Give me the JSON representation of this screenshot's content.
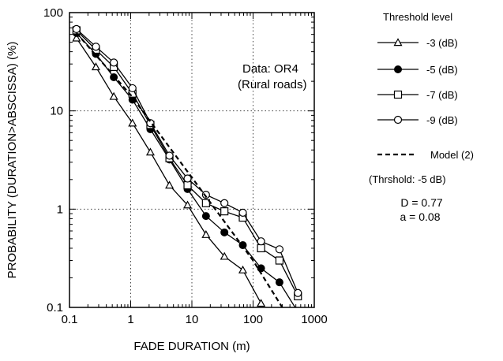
{
  "chart_data": {
    "type": "line",
    "xlabel": "FADE DURATION (m)",
    "ylabel": "PROBABILITY (DURATION>ABSCISSA) (%)",
    "xscale": "log",
    "yscale": "log",
    "xlim": [
      0.1,
      1000
    ],
    "ylim": [
      0.1,
      100
    ],
    "grid": "dotted, on decades",
    "x_tick_labels": [
      "0.1",
      "1",
      "10",
      "100",
      "1000"
    ],
    "y_tick_labels": [
      "0.1",
      "1",
      "10",
      "100"
    ],
    "legend_title": "Threshold level",
    "legend_position": "right",
    "annotation": [
      "Data: OR4",
      "(Rural roads)"
    ],
    "model_label": "Model (2)",
    "model_note": "(Thrshold: -5 dB)",
    "params": [
      "D = 0.77",
      "a = 0.08"
    ],
    "series": [
      {
        "name": "-3 (dB)",
        "marker": "triangle-open",
        "x": [
          0.13,
          0.27,
          0.53,
          1.07,
          2.1,
          4.3,
          8.5,
          17,
          34,
          68,
          135
        ],
        "y": [
          55,
          28,
          14,
          7.5,
          3.8,
          1.75,
          1.1,
          0.55,
          0.33,
          0.24,
          0.11
        ]
      },
      {
        "name": "-5 (dB)",
        "marker": "circle-filled",
        "x": [
          0.13,
          0.27,
          0.53,
          1.07,
          2.1,
          4.3,
          8.5,
          17,
          34,
          68,
          135,
          270,
          540
        ],
        "y": [
          62,
          38,
          22,
          13,
          6.5,
          3.2,
          1.6,
          0.85,
          0.58,
          0.43,
          0.25,
          0.18,
          0.09
        ]
      },
      {
        "name": "-7 (dB)",
        "marker": "square-open",
        "x": [
          0.13,
          0.27,
          0.53,
          1.07,
          2.1,
          4.3,
          8.5,
          17,
          34,
          68,
          135,
          270,
          540
        ],
        "y": [
          66,
          42,
          28,
          15,
          7.2,
          3.3,
          1.75,
          1.15,
          0.95,
          0.82,
          0.4,
          0.3,
          0.13
        ]
      },
      {
        "name": "-9 (dB)",
        "marker": "circle-open",
        "x": [
          0.13,
          0.27,
          0.53,
          1.07,
          2.1,
          4.3,
          8.5,
          17,
          34,
          68,
          135,
          270,
          540
        ],
        "y": [
          68,
          45,
          31,
          17,
          7.5,
          3.5,
          2.05,
          1.4,
          1.15,
          0.92,
          0.47,
          0.39,
          0.14
        ]
      },
      {
        "name": "Model (2)",
        "marker": "none",
        "line": "dashed",
        "x": [
          0.13,
          1,
          10,
          100,
          500
        ],
        "y": [
          62,
          14.5,
          2.1,
          0.3,
          0.06
        ]
      }
    ]
  }
}
